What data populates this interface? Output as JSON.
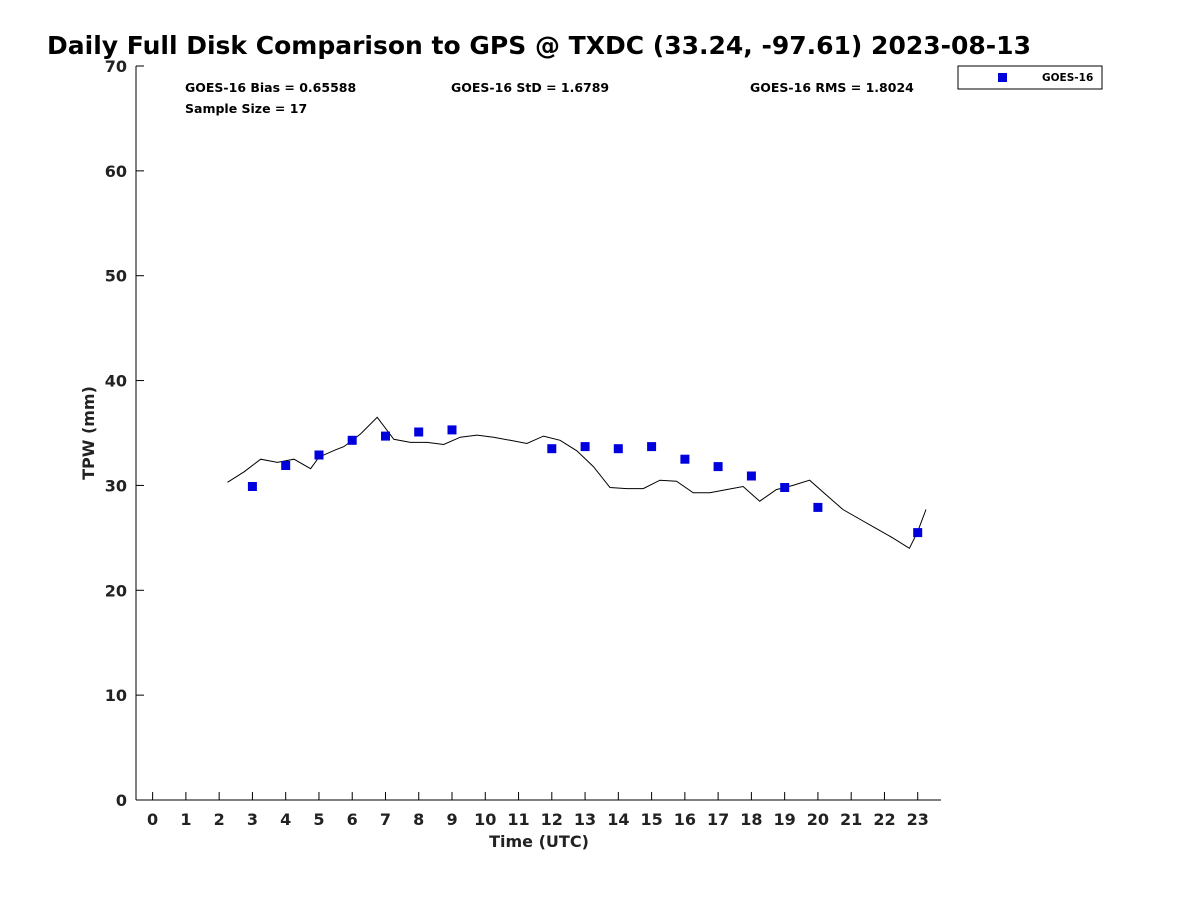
{
  "chart_data": {
    "type": "scatter",
    "title": "Daily Full Disk Comparison to GPS @ TXDC (33.24, -97.61) 2023-08-13",
    "xlabel": "Time (UTC)",
    "ylabel": "TPW (mm)",
    "xlim": [
      -0.5,
      23.7
    ],
    "ylim": [
      0,
      70
    ],
    "x_ticks": [
      "0",
      "1",
      "2",
      "3",
      "4",
      "5",
      "6",
      "7",
      "8",
      "9",
      "10",
      "11",
      "12",
      "13",
      "14",
      "15",
      "16",
      "17",
      "18",
      "19",
      "20",
      "21",
      "22",
      "23"
    ],
    "y_ticks": [
      "0",
      "10",
      "20",
      "30",
      "40",
      "50",
      "60",
      "70"
    ],
    "grid": false,
    "legend_position": "top-right, outside plot",
    "stats": {
      "bias": "GOES-16 Bias = 0.65588",
      "std": "GOES-16 StD = 1.6789",
      "rms": "GOES-16 RMS = 1.8024",
      "sample": "Sample Size = 17"
    },
    "series": [
      {
        "name": "GOES-16",
        "kind": "scatter",
        "color": "#0000dd",
        "x": [
          3,
          4,
          5,
          6,
          7,
          8,
          9,
          12,
          13,
          14,
          15,
          16,
          17,
          18,
          19,
          20,
          23
        ],
        "y": [
          29.9,
          31.9,
          32.9,
          34.3,
          34.7,
          35.1,
          35.3,
          33.5,
          33.7,
          33.5,
          33.7,
          32.5,
          31.8,
          30.9,
          29.8,
          27.9,
          25.5
        ]
      },
      {
        "kind": "line",
        "color": "#000000",
        "x": [
          2.25,
          2.75,
          3.25,
          3.75,
          4.25,
          4.75,
          5.0,
          5.5,
          5.75,
          6.25,
          6.75,
          7.25,
          7.75,
          8.25,
          8.75,
          9.25,
          9.75,
          10.25,
          10.75,
          11.25,
          11.75,
          12.25,
          12.75,
          13.25,
          13.75,
          14.25,
          14.75,
          15.25,
          15.75,
          16.25,
          16.75,
          17.25,
          17.75,
          18.25,
          18.75,
          19.25,
          19.75,
          20.25,
          20.75,
          21.25,
          21.75,
          22.25,
          22.75,
          23.0,
          23.25
        ],
        "y": [
          30.3,
          31.3,
          32.5,
          32.2,
          32.5,
          31.6,
          32.7,
          33.4,
          33.7,
          34.9,
          36.5,
          34.4,
          34.1,
          34.1,
          33.9,
          34.6,
          34.8,
          34.6,
          34.3,
          34.0,
          34.7,
          34.3,
          33.3,
          31.8,
          29.8,
          29.7,
          29.7,
          30.5,
          30.4,
          29.3,
          29.3,
          29.6,
          29.9,
          28.5,
          29.6,
          30.0,
          30.5,
          29.1,
          27.7,
          26.8,
          25.9,
          25.0,
          24.0,
          25.6,
          27.7
        ]
      }
    ]
  }
}
